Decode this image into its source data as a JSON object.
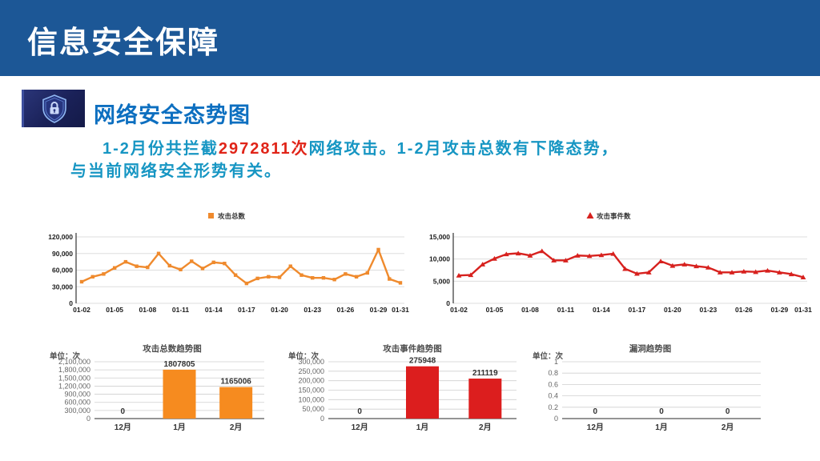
{
  "header": {
    "title": "信息安全保障"
  },
  "section": {
    "title": "网络安全态势图",
    "icon": "shield-lock-icon"
  },
  "summary": {
    "line1_part1": "1-2月份共拦截",
    "highlight": "2972811次",
    "line1_part2": "网络攻击。1-2月攻击总数有下降态势，",
    "line2": "与当前网络安全形势有关。"
  },
  "colors": {
    "header_bg": "#1c5796",
    "section_title": "#0d6fc0",
    "summary_text": "#1796c3",
    "summary_highlight": "#e02418"
  },
  "chart_data": [
    {
      "type": "line",
      "name": "attack-total-daily",
      "legend": "攻击总数",
      "marker": "square",
      "color": "#ef8a2d",
      "x": [
        "01-02",
        "01-03",
        "01-04",
        "01-05",
        "01-06",
        "01-07",
        "01-08",
        "01-09",
        "01-10",
        "01-11",
        "01-12",
        "01-13",
        "01-14",
        "01-15",
        "01-16",
        "01-17",
        "01-18",
        "01-19",
        "01-20",
        "01-21",
        "01-22",
        "01-23",
        "01-24",
        "01-25",
        "01-26",
        "01-27",
        "01-28",
        "01-29",
        "01-30",
        "01-31"
      ],
      "values": [
        39000,
        48000,
        53000,
        64000,
        75000,
        67000,
        65000,
        90000,
        68000,
        61000,
        76000,
        63000,
        74000,
        72000,
        51000,
        36000,
        45000,
        48000,
        47000,
        67000,
        51000,
        46000,
        46000,
        43000,
        53000,
        48000,
        55000,
        97000,
        44000,
        37000
      ],
      "ymax": 120000,
      "ytick_values": [
        0,
        30000,
        60000,
        90000,
        120000
      ],
      "ytick_labels": [
        "0",
        "30,000",
        "60,000",
        "90,000",
        "120,000"
      ],
      "xtick_labels": [
        "01-02",
        "01-05",
        "01-08",
        "01-11",
        "01-14",
        "01-17",
        "01-20",
        "01-23",
        "01-26",
        "01-29",
        "01-31"
      ],
      "grid": true,
      "legend_position": "top"
    },
    {
      "type": "line",
      "name": "attack-event-daily",
      "legend": "攻击事件数",
      "marker": "triangle",
      "color": "#d7211e",
      "x": [
        "01-02",
        "01-03",
        "01-04",
        "01-05",
        "01-06",
        "01-07",
        "01-08",
        "01-09",
        "01-10",
        "01-11",
        "01-12",
        "01-13",
        "01-14",
        "01-15",
        "01-16",
        "01-17",
        "01-18",
        "01-19",
        "01-20",
        "01-21",
        "01-22",
        "01-23",
        "01-24",
        "01-25",
        "01-26",
        "01-27",
        "01-28",
        "01-29",
        "01-30",
        "01-31"
      ],
      "values": [
        6300,
        6400,
        8800,
        10100,
        11100,
        11300,
        10800,
        11800,
        9700,
        9700,
        10800,
        10700,
        10900,
        11200,
        7800,
        6700,
        7000,
        9500,
        8500,
        8800,
        8400,
        8100,
        7000,
        7000,
        7200,
        7100,
        7400,
        7000,
        6600,
        5900
      ],
      "ymax": 15000,
      "ytick_values": [
        0,
        5000,
        10000,
        15000
      ],
      "ytick_labels": [
        "0",
        "5,000",
        "10,000",
        "15,000"
      ],
      "xtick_labels": [
        "01-02",
        "01-05",
        "01-08",
        "01-11",
        "01-14",
        "01-17",
        "01-20",
        "01-23",
        "01-26",
        "01-29",
        "01-31"
      ],
      "grid": true,
      "legend_position": "top"
    },
    {
      "type": "bar",
      "name": "attack-total-trend",
      "title": "攻击总数趋势图",
      "unit": "单位：次",
      "color": "#f68b1f",
      "categories": [
        "12月",
        "1月",
        "2月"
      ],
      "values": [
        0,
        1807805,
        1165006
      ],
      "ymax": 2100000,
      "ytick_values": [
        0,
        300000,
        600000,
        900000,
        1200000,
        1500000,
        1800000,
        2100000
      ],
      "ytick_labels": [
        "0",
        "300,000",
        "600,000",
        "900,000",
        "1,200,000",
        "1,500,000",
        "1,800,000",
        "2,100,000"
      ],
      "grid": true
    },
    {
      "type": "bar",
      "name": "attack-event-trend",
      "title": "攻击事件趋势图",
      "unit": "单位：次",
      "color": "#dc1e1e",
      "categories": [
        "12月",
        "1月",
        "2月"
      ],
      "values": [
        0,
        275948,
        211119
      ],
      "ymax": 300000,
      "ytick_values": [
        0,
        50000,
        100000,
        150000,
        200000,
        250000,
        300000
      ],
      "ytick_labels": [
        "0",
        "50,000",
        "100,000",
        "150,000",
        "200,000",
        "250,000",
        "300,000"
      ],
      "grid": true
    },
    {
      "type": "bar",
      "name": "vulnerability-trend",
      "title": "漏洞趋势图",
      "unit": "单位：次",
      "color": "#dc1e1e",
      "categories": [
        "12月",
        "1月",
        "2月"
      ],
      "values": [
        0,
        0,
        0
      ],
      "ymax": 1,
      "ytick_values": [
        0,
        0.2,
        0.4,
        0.6,
        0.8,
        1
      ],
      "ytick_labels": [
        "0",
        "0.2",
        "0.4",
        "0.6",
        "0.8",
        "1"
      ],
      "grid": true
    }
  ]
}
